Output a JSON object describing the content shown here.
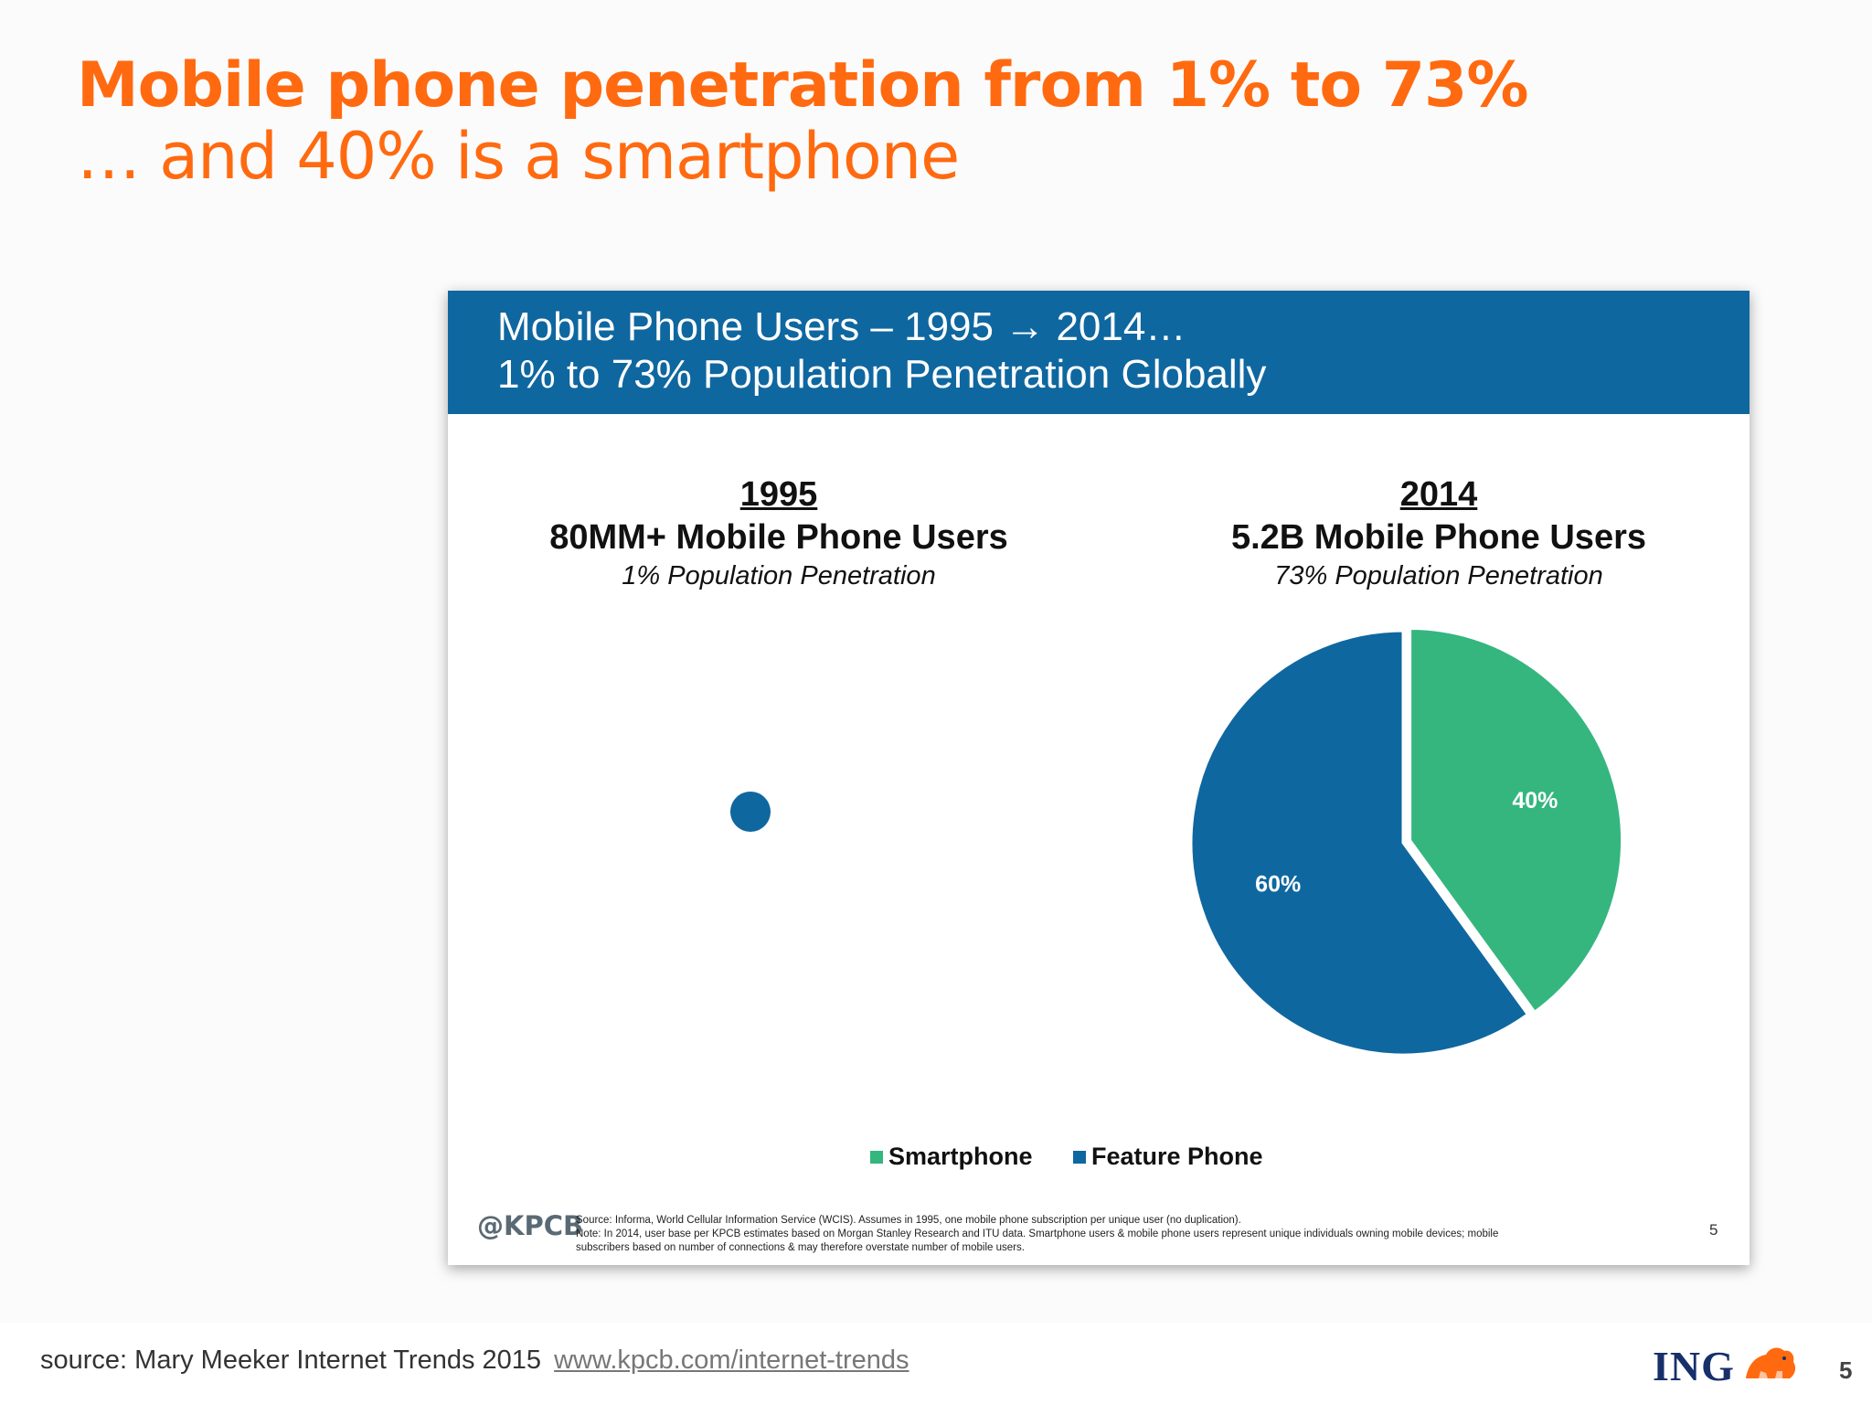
{
  "slide": {
    "title": "Mobile phone penetration from 1% to 73%",
    "subtitle": "… and 40% is a smartphone"
  },
  "panel": {
    "header_line1": "Mobile Phone Users – 1995 → 2014…",
    "header_line2": "1% to 73% Population Penetration Globally",
    "left": {
      "year": "1995",
      "users": "80MM+ Mobile Phone Users",
      "penetration": "1% Population Penetration"
    },
    "right": {
      "year": "2014",
      "users": "5.2B Mobile Phone Users",
      "penetration": "73% Population Penetration"
    },
    "footer": {
      "logo": "@KPCB",
      "note1": "Source: Informa, World Cellular Information Service (WCIS). Assumes in 1995, one mobile phone subscription per unique user (no duplication).",
      "note2": "Note: In 2014, user base per KPCB estimates based on Morgan Stanley Research and ITU data. Smartphone users & mobile phone users represent unique individuals owning mobile devices; mobile",
      "note3": "subscribers based on number of connections & may therefore overstate number of mobile users.",
      "page": "5"
    }
  },
  "chart_data": {
    "type": "pie",
    "categories": [
      "Smartphone",
      "Feature Phone"
    ],
    "values": [
      40,
      60
    ],
    "labels": [
      "40%",
      "60%"
    ],
    "colors": [
      "#35b67f",
      "#0f67a0"
    ],
    "legend_position": "bottom"
  },
  "bottom": {
    "source_prefix": "source: Mary Meeker Internet Trends 2015",
    "source_link": "www.kpcb.com/internet-trends",
    "brand": "ING",
    "page_number": "5"
  }
}
